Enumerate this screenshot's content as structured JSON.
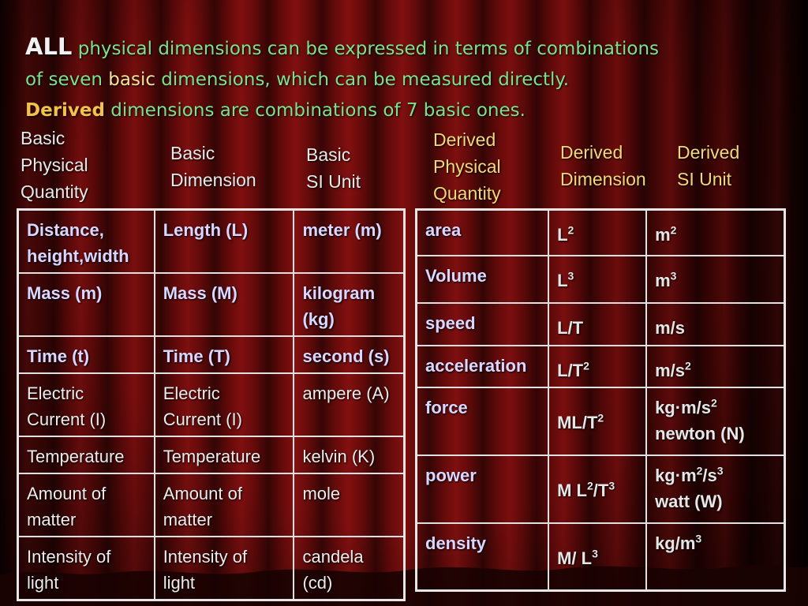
{
  "heading": {
    "all": "ALL",
    "line1_rest": " physical dimensions can be expressed in terms of combinations",
    "line2_pre": "of seven ",
    "line2_basic": "basic",
    "line2_post": " dimensions, which can be measured directly.",
    "line3_derived": "Derived",
    "line3_rest": " dimensions are combinations of 7 basic ones."
  },
  "left_headers": {
    "col1": [
      "Basic",
      "Physical",
      "Quantity"
    ],
    "col2": [
      "Basic",
      "Dimension"
    ],
    "col3": [
      "Basic",
      "SI Unit"
    ]
  },
  "right_headers": {
    "col1": [
      "Derived",
      "Physical",
      "Quantity"
    ],
    "col2": [
      "Derived",
      "Dimension"
    ],
    "col3": [
      "Derived",
      "SI Unit"
    ]
  },
  "basic_rows": [
    {
      "quantity": [
        "Distance,",
        "height,width"
      ],
      "dimension": [
        "Length (L)"
      ],
      "unit": [
        "meter  (m)"
      ],
      "bold": true
    },
    {
      "quantity": [
        "Mass (m)"
      ],
      "dimension": [
        "Mass (M)"
      ],
      "unit": [
        "kilogram",
        "(kg)"
      ],
      "bold": true
    },
    {
      "quantity": [
        "Time (t)"
      ],
      "dimension": [
        "Time (T)"
      ],
      "unit": [
        "second (s)"
      ],
      "bold": true
    },
    {
      "quantity": [
        "Electric",
        "Current (I)"
      ],
      "dimension": [
        "Electric",
        "Current (I)"
      ],
      "unit": [
        "ampere (A)"
      ],
      "bold": false
    },
    {
      "quantity": [
        "Temperature"
      ],
      "dimension": [
        "Temperature"
      ],
      "unit": [
        "kelvin (K)"
      ],
      "bold": false
    },
    {
      "quantity": [
        "Amount of",
        "matter"
      ],
      "dimension": [
        "Amount of",
        "matter"
      ],
      "unit": [
        "mole"
      ],
      "bold": false
    },
    {
      "quantity": [
        "Intensity of",
        "light"
      ],
      "dimension": [
        "Intensity of",
        "light"
      ],
      "unit": [
        "candela",
        "(cd)"
      ],
      "bold": false
    }
  ],
  "derived_rows": [
    {
      "quantity": "area",
      "dimension": [
        [
          "L",
          ""
        ],
        [
          "2",
          "sup"
        ]
      ],
      "unit": [
        [
          [
            "m",
            ""
          ],
          [
            "2",
            "sup"
          ]
        ]
      ]
    },
    {
      "quantity": "Volume",
      "dimension": [
        [
          "L",
          ""
        ],
        [
          "3",
          "sup"
        ]
      ],
      "unit": [
        [
          [
            "m",
            ""
          ],
          [
            "3",
            "sup"
          ]
        ]
      ]
    },
    {
      "quantity": "speed",
      "dimension": [
        [
          "L/T",
          ""
        ]
      ],
      "unit": [
        [
          [
            "m/s",
            ""
          ]
        ]
      ]
    },
    {
      "quantity": "acceleration",
      "dimension": [
        [
          "L/T",
          ""
        ],
        [
          "2",
          "sup"
        ]
      ],
      "unit": [
        [
          [
            "m/s",
            ""
          ],
          [
            "2",
            "sup"
          ]
        ]
      ]
    },
    {
      "quantity": "force",
      "dimension": [
        [
          "ML/T",
          ""
        ],
        [
          "2",
          "sup"
        ]
      ],
      "unit": [
        [
          [
            "kg·m/s",
            ""
          ],
          [
            "2",
            "sup"
          ]
        ],
        [
          [
            "newton (N)",
            ""
          ]
        ]
      ]
    },
    {
      "quantity": "power",
      "dimension": [
        [
          "M L",
          ""
        ],
        [
          "2",
          "sup"
        ],
        [
          "/T",
          ""
        ],
        [
          "3",
          "sup"
        ]
      ],
      "unit": [
        [
          [
            "kg·m",
            ""
          ],
          [
            "2",
            "sup"
          ],
          [
            "/s",
            ""
          ],
          [
            "3",
            "sup"
          ]
        ],
        [
          [
            "watt (W)",
            ""
          ]
        ]
      ]
    },
    {
      "quantity": "density",
      "dimension": [
        [
          "M/ L",
          ""
        ],
        [
          "3",
          "sup"
        ]
      ],
      "unit": [
        [
          [
            "kg/m",
            ""
          ],
          [
            "3",
            "sup"
          ]
        ]
      ]
    }
  ]
}
